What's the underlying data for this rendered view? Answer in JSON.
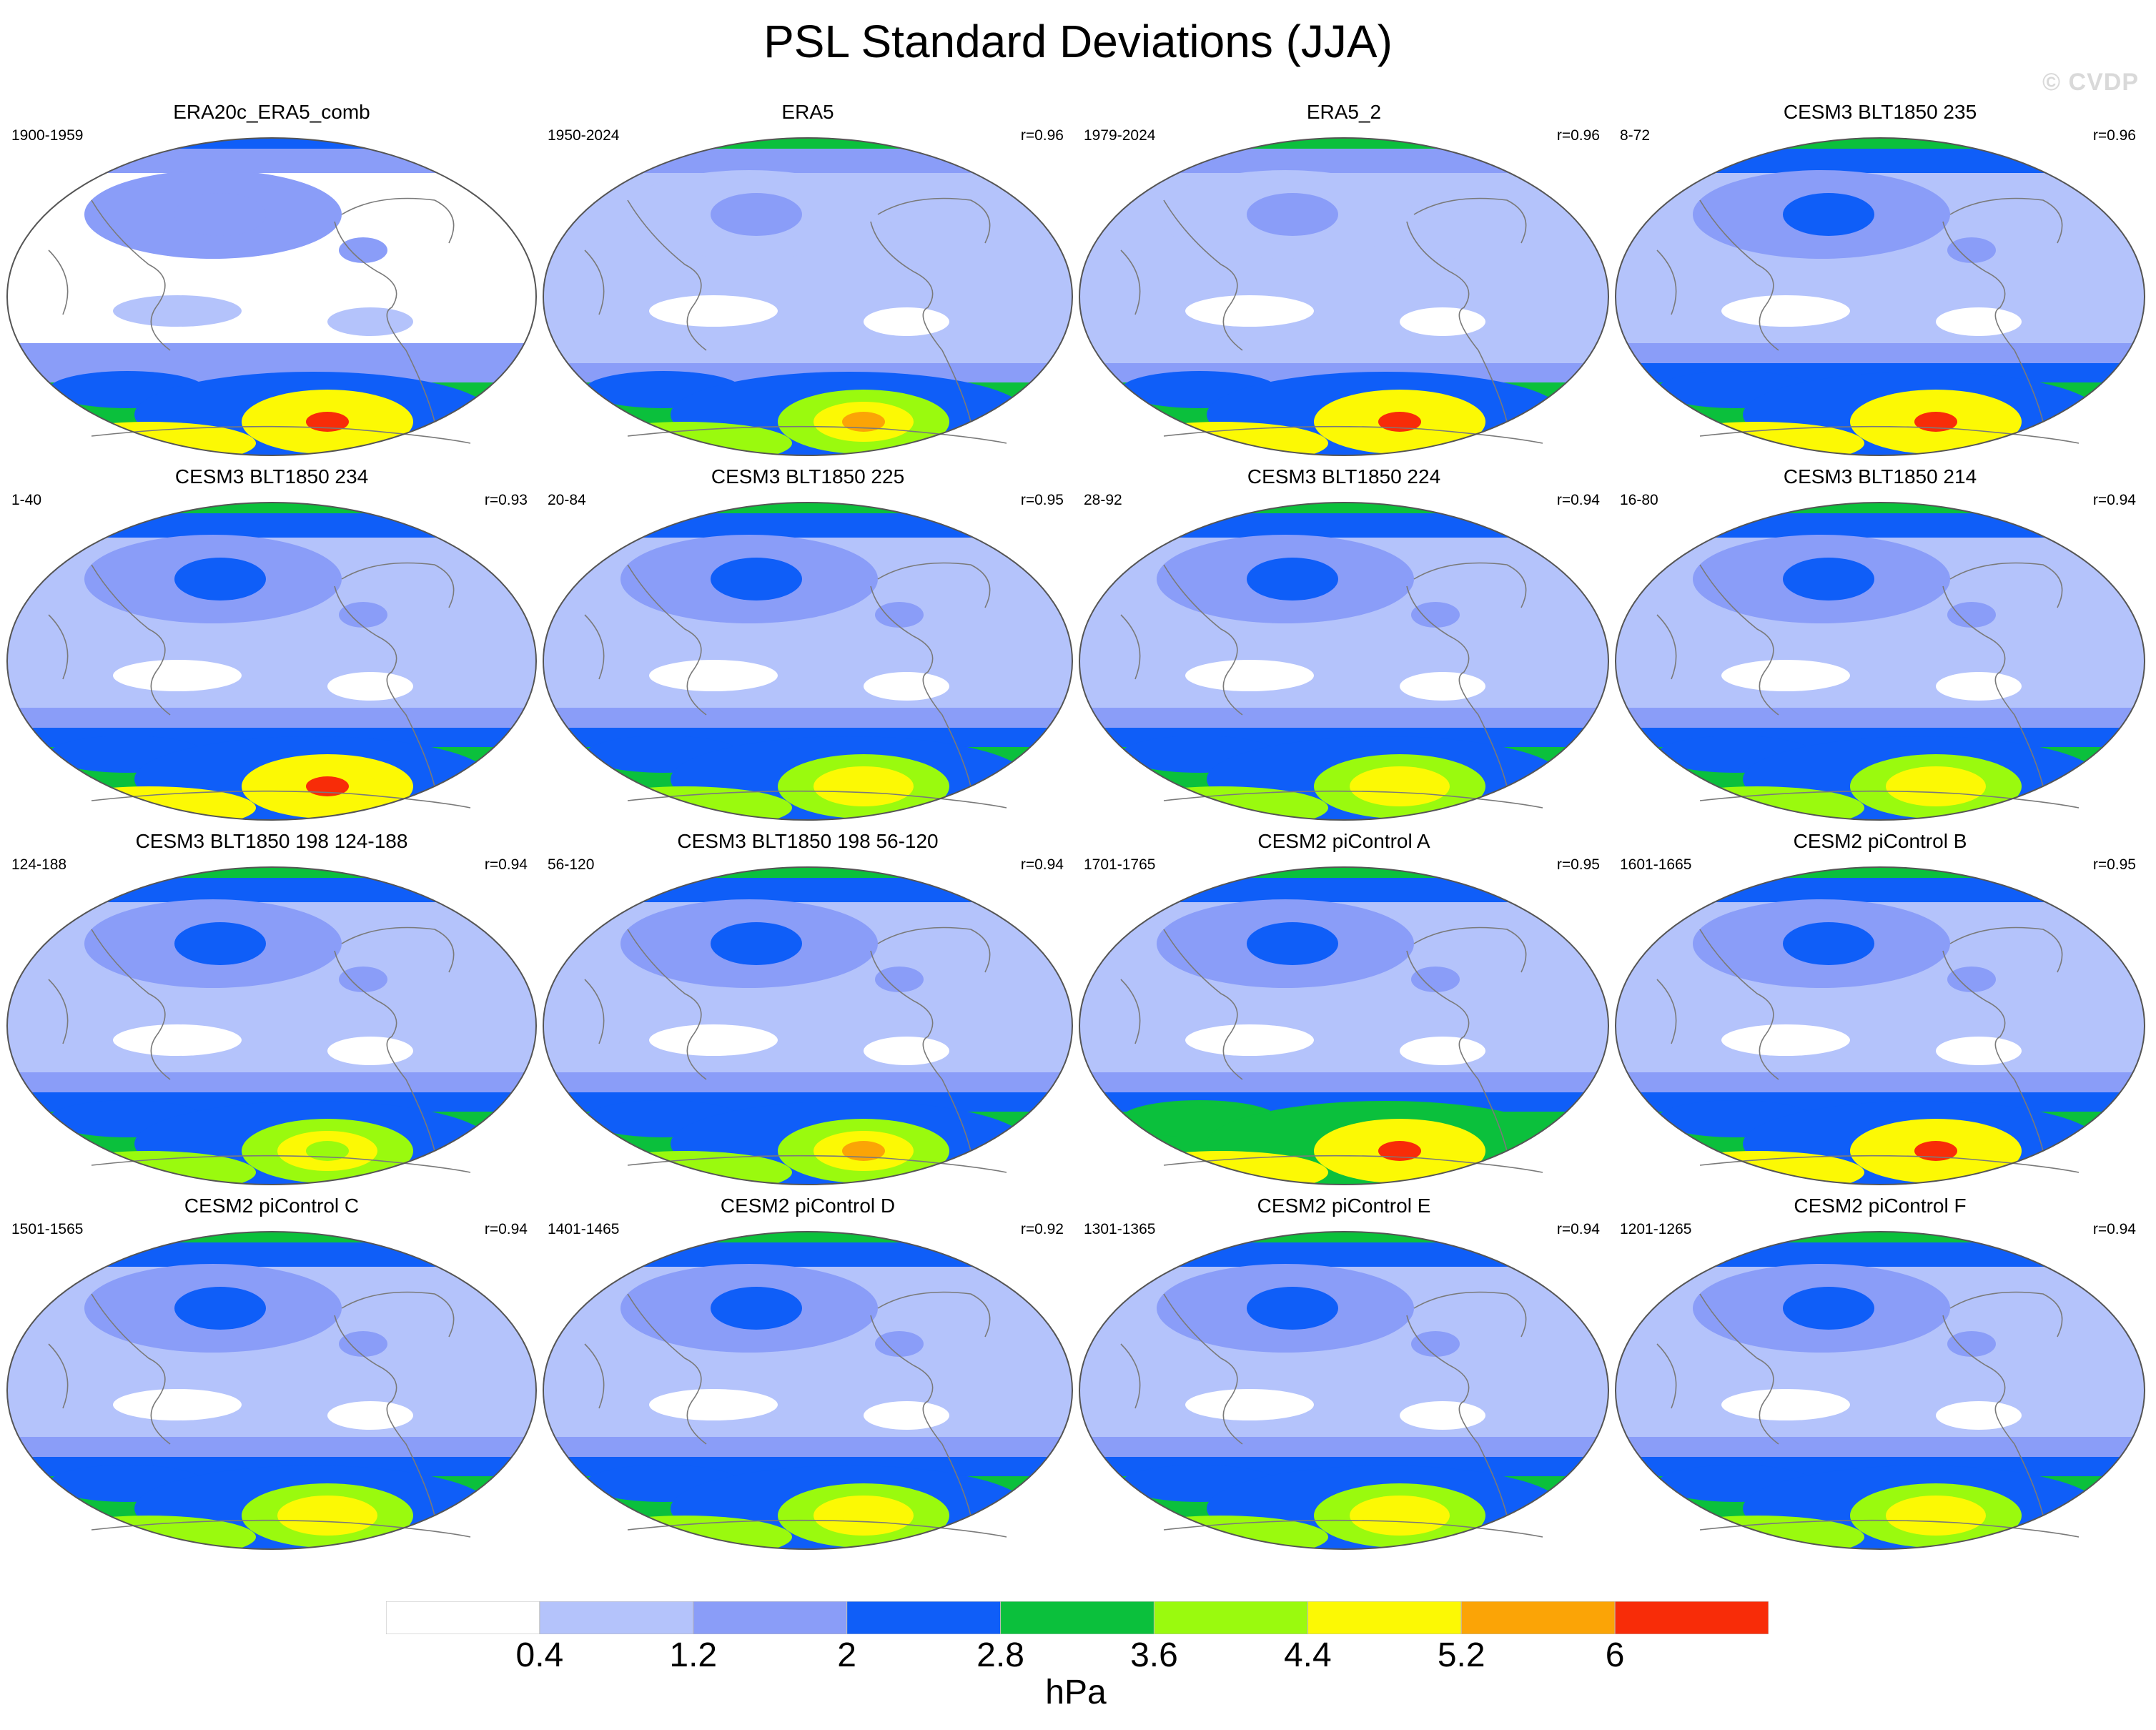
{
  "title": "PSL Standard Deviations (JJA)",
  "watermark": "© CVDP",
  "colors": [
    "#ffffff",
    "#b4c3fb",
    "#8a9df8",
    "#0f5ef8",
    "#0bc03c",
    "#9afa0e",
    "#fcf904",
    "#fba406",
    "#f82c08"
  ],
  "panels": [
    {
      "title": "ERA20c_ERA5_comb",
      "years": "1900-1959",
      "r": "",
      "levels": [
        0,
        4,
        3,
        2,
        2,
        1,
        5,
        3,
        1,
        4,
        3,
        6,
        3,
        8
      ]
    },
    {
      "title": "ERA5",
      "years": "1950-2024",
      "r": "r=0.96",
      "levels": [
        1,
        1,
        4,
        2,
        1,
        1,
        3,
        2,
        0,
        4,
        3,
        5,
        3,
        7
      ]
    },
    {
      "title": "ERA5_2",
      "years": "1979-2024",
      "r": "r=0.96",
      "levels": [
        1,
        1,
        4,
        2,
        1,
        1,
        3,
        2,
        0,
        4,
        3,
        6,
        3,
        8
      ]
    },
    {
      "title": "CESM3 BLT1850 235",
      "years": "8-72",
      "r": "r=0.96",
      "levels": [
        1,
        1,
        4,
        3,
        2,
        1,
        3,
        2,
        0,
        4,
        3,
        6,
        3,
        8
      ]
    },
    {
      "title": "CESM3 BLT1850 234",
      "years": "1-40",
      "r": "r=0.93",
      "levels": [
        1,
        1,
        4,
        3,
        2,
        1,
        3,
        2,
        0,
        4,
        3,
        6,
        3,
        8
      ]
    },
    {
      "title": "CESM3 BLT1850 225",
      "years": "20-84",
      "r": "r=0.95",
      "levels": [
        1,
        1,
        4,
        3,
        2,
        1,
        3,
        2,
        0,
        4,
        3,
        5,
        3,
        6
      ]
    },
    {
      "title": "CESM3 BLT1850 224",
      "years": "28-92",
      "r": "r=0.94",
      "levels": [
        1,
        1,
        4,
        3,
        2,
        1,
        3,
        2,
        0,
        4,
        3,
        5,
        3,
        6
      ]
    },
    {
      "title": "CESM3 BLT1850 214",
      "years": "16-80",
      "r": "r=0.94",
      "levels": [
        1,
        1,
        4,
        3,
        2,
        1,
        3,
        2,
        0,
        4,
        3,
        5,
        3,
        6
      ]
    },
    {
      "title": "CESM3 BLT1850 198 124-188",
      "years": "124-188",
      "r": "r=0.94",
      "levels": [
        1,
        1,
        4,
        3,
        2,
        1,
        3,
        2,
        0,
        4,
        3,
        5,
        3,
        5
      ]
    },
    {
      "title": "CESM3 BLT1850 198 56-120",
      "years": "56-120",
      "r": "r=0.94",
      "levels": [
        1,
        1,
        4,
        3,
        2,
        1,
        3,
        2,
        0,
        4,
        3,
        5,
        3,
        7
      ]
    },
    {
      "title": "CESM2 piControl A",
      "years": "1701-1765",
      "r": "r=0.95",
      "levels": [
        1,
        1,
        4,
        3,
        2,
        1,
        3,
        2,
        0,
        4,
        4,
        6,
        3,
        8
      ]
    },
    {
      "title": "CESM2 piControl B",
      "years": "1601-1665",
      "r": "r=0.95",
      "levels": [
        1,
        1,
        4,
        3,
        2,
        1,
        3,
        2,
        0,
        4,
        3,
        6,
        3,
        8
      ]
    },
    {
      "title": "CESM2 piControl C",
      "years": "1501-1565",
      "r": "r=0.94",
      "levels": [
        1,
        1,
        4,
        3,
        2,
        1,
        3,
        2,
        0,
        4,
        3,
        5,
        3,
        6
      ]
    },
    {
      "title": "CESM2 piControl D",
      "years": "1401-1465",
      "r": "r=0.92",
      "levels": [
        1,
        1,
        4,
        3,
        2,
        1,
        3,
        2,
        0,
        4,
        3,
        5,
        3,
        6
      ]
    },
    {
      "title": "CESM2 piControl E",
      "years": "1301-1365",
      "r": "r=0.94",
      "levels": [
        1,
        1,
        4,
        3,
        2,
        1,
        3,
        2,
        0,
        4,
        3,
        5,
        3,
        6
      ]
    },
    {
      "title": "CESM2 piControl F",
      "years": "1201-1265",
      "r": "r=0.94",
      "levels": [
        1,
        1,
        4,
        3,
        2,
        1,
        3,
        2,
        0,
        4,
        3,
        5,
        3,
        6
      ]
    }
  ],
  "colorbar": {
    "ticks": [
      "0.4",
      "1.2",
      "2",
      "2.8",
      "3.6",
      "4.4",
      "5.2",
      "6"
    ],
    "units": "hPa"
  }
}
